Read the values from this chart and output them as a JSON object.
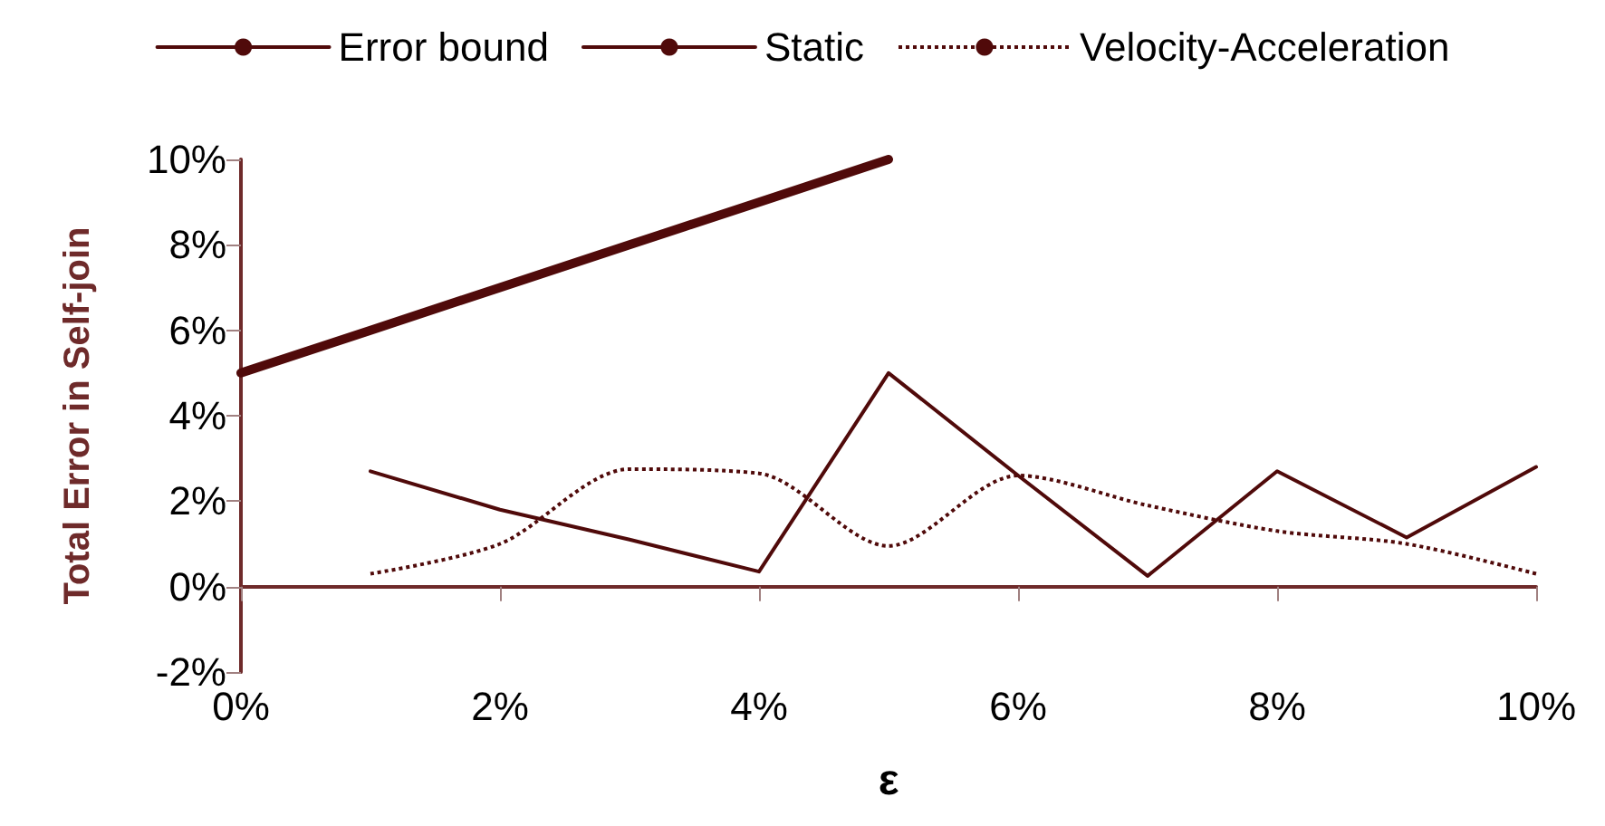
{
  "chart_data": {
    "type": "line",
    "xlabel": "ε",
    "ylabel": "Total Error in Self-join",
    "xlim": [
      0,
      10
    ],
    "ylim": [
      -2,
      10
    ],
    "xticks": [
      {
        "value": 0,
        "label": "0%"
      },
      {
        "value": 2,
        "label": "2%"
      },
      {
        "value": 4,
        "label": "4%"
      },
      {
        "value": 6,
        "label": "6%"
      },
      {
        "value": 8,
        "label": "8%"
      },
      {
        "value": 10,
        "label": "10%"
      }
    ],
    "yticks": [
      {
        "value": -2,
        "label": "-2%"
      },
      {
        "value": 0,
        "label": "0%"
      },
      {
        "value": 2,
        "label": "2%"
      },
      {
        "value": 4,
        "label": "4%"
      },
      {
        "value": 6,
        "label": "6%"
      },
      {
        "value": 8,
        "label": "8%"
      },
      {
        "value": 10,
        "label": "10%"
      }
    ],
    "legend": "top",
    "grid": false,
    "marker": "none",
    "series": [
      {
        "name": "Error bound",
        "color": "#500a0a",
        "line_style": "solid",
        "x": [
          0,
          1,
          2,
          3,
          4,
          5
        ],
        "values": [
          5,
          6,
          7,
          8,
          9,
          10
        ]
      },
      {
        "name": "Static",
        "color": "#500a0a",
        "line_style": "solid",
        "x": [
          1,
          2,
          3,
          4,
          5,
          6,
          7,
          8,
          9,
          10
        ],
        "values": [
          2.7,
          1.8,
          1.1,
          0.35,
          5,
          2.6,
          0.25,
          2.7,
          1.15,
          2.8
        ]
      },
      {
        "name": "Velocity-Acceleration",
        "color": "#500a0a",
        "line_style": "dotted",
        "x": [
          1,
          2,
          3,
          4,
          5,
          6,
          7,
          8,
          9,
          10
        ],
        "values": [
          0.3,
          1,
          2.75,
          2.65,
          0.95,
          2.6,
          1.9,
          1.3,
          1,
          0.3
        ]
      }
    ]
  }
}
